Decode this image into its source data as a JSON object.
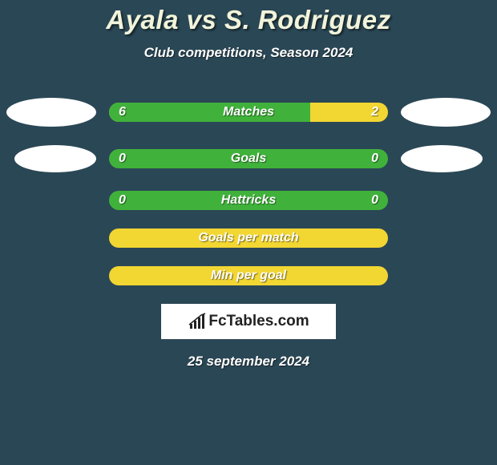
{
  "title": "Ayala vs S. Rodriguez",
  "subtitle": "Club competitions, Season 2024",
  "colors": {
    "background": "#2a4755",
    "accent_title": "#f2f4da",
    "bar_green": "#40b23b",
    "bar_yellow": "#f2d632",
    "text_white": "#ffffff",
    "logo_bg": "#ffffff",
    "logo_text": "#222222",
    "avatar": "#ffffff"
  },
  "stats": [
    {
      "label": "Matches",
      "left_value": "6",
      "right_value": "2",
      "left_pct": 72,
      "bg": "yellow",
      "show_avatars": true,
      "avatar_size": "large"
    },
    {
      "label": "Goals",
      "left_value": "0",
      "right_value": "0",
      "left_pct": 100,
      "bg": "green",
      "show_avatars": true,
      "avatar_size": "small"
    },
    {
      "label": "Hattricks",
      "left_value": "0",
      "right_value": "0",
      "left_pct": 100,
      "bg": "green",
      "show_avatars": false
    },
    {
      "label": "Goals per match",
      "left_value": "",
      "right_value": "",
      "left_pct": 0,
      "bg": "yellow",
      "show_avatars": false
    },
    {
      "label": "Min per goal",
      "left_value": "",
      "right_value": "",
      "left_pct": 0,
      "bg": "yellow",
      "show_avatars": false
    }
  ],
  "logo_text": "FcTables.com",
  "date": "25 september 2024"
}
